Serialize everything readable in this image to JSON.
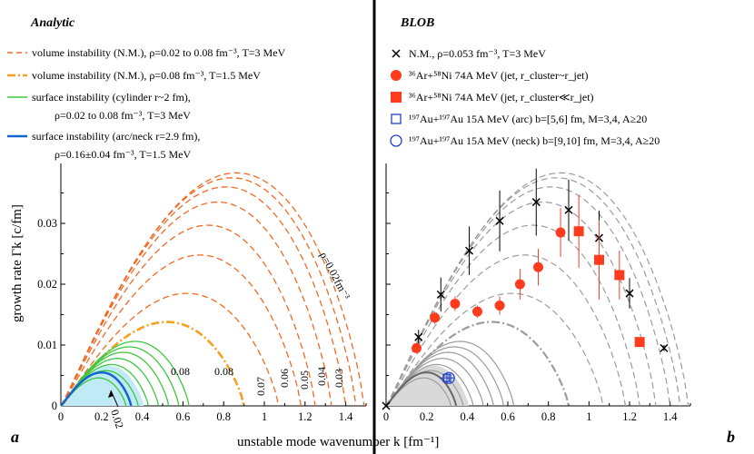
{
  "panels": {
    "left": {
      "title": "Analytic",
      "letter": "a",
      "legend": [
        {
          "style": "dash-orange",
          "text": "volume instability (N.M.), ρ=0.02 to 0.08 fm⁻³, T=3 MeV"
        },
        {
          "style": "dashdot-orange",
          "text": "volume instability (N.M.), ρ=0.08 fm⁻³, T=1.5 MeV"
        },
        {
          "style": "solid-green",
          "text": "surface instability (cylinder r~2 fm),",
          "text2": "ρ=0.02 to 0.08 fm⁻³, T=3 MeV"
        },
        {
          "style": "solid-blue",
          "text": "surface instability (arc/neck r=2.9 fm),",
          "text2": "ρ=0.16±0.04 fm⁻³, T=1.5 MeV"
        }
      ],
      "curve_labels": [
        "0.08",
        "0.08",
        "0.07",
        "0.06",
        "0.05",
        "0.04",
        "0.03",
        "ρ=0.02fm⁻³",
        "0.02"
      ]
    },
    "right": {
      "title": "BLOB",
      "letter": "b",
      "legend": [
        {
          "marker": "cross",
          "text": "N.M., ρ=0.053 fm⁻³, T=3 MeV"
        },
        {
          "marker": "circle-red",
          "text": "³⁶Ar+⁵⁸Ni 74A MeV (jet, r_cluster~r_jet)"
        },
        {
          "marker": "square-red",
          "text": "³⁶Ar+⁵⁸Ni 74A MeV (jet, r_cluster≪r_jet)"
        },
        {
          "marker": "square-blue",
          "text": "¹⁹⁷Au+¹⁹⁷Au 15A MeV (arc) b=[5,6] fm, M=3,4, A≥20"
        },
        {
          "marker": "circle-blue",
          "text": "¹⁹⁷Au+¹⁹⁷Au 15A MeV (neck) b=[9,10] fm, M=3,4, A≥20"
        }
      ]
    },
    "y_axis_title": "growth rate Γk [c/fm]",
    "x_axis_title": "unstable mode wavenumber k [fm⁻¹]"
  },
  "chart_data": [
    {
      "type": "line",
      "panel": "a",
      "title": "Analytic",
      "xlabel": "unstable mode wavenumber k [fm⁻¹]",
      "ylabel": "growth rate Γk [c/fm]",
      "xlim": [
        0,
        1.5
      ],
      "ylim": [
        0,
        0.04
      ],
      "x_ticks": [
        "0",
        "0.2",
        "0.4",
        "0.6",
        "0.8",
        "1",
        "1.2",
        "1.4"
      ],
      "y_ticks": [
        "0",
        "0.01",
        "0.02",
        "0.03"
      ],
      "series": [
        {
          "name": "volume N.M. ρ=0.08 T=3",
          "style": "dash-orange",
          "kmax": 1.49,
          "peak": 0.0383
        },
        {
          "name": "volume N.M. ρ=0.07 T=3",
          "style": "dash-orange",
          "kmax": 1.45,
          "peak": 0.0375
        },
        {
          "name": "volume N.M. ρ=0.06 T=3",
          "style": "dash-orange",
          "kmax": 1.4,
          "peak": 0.036
        },
        {
          "name": "volume N.M. ρ=0.05 T=3",
          "style": "dash-orange",
          "kmax": 1.33,
          "peak": 0.0335
        },
        {
          "name": "volume N.M. ρ=0.04 T=3",
          "style": "dash-orange",
          "kmax": 1.25,
          "peak": 0.0297
        },
        {
          "name": "volume N.M. ρ=0.03 T=3",
          "style": "dash-orange",
          "kmax": 1.18,
          "peak": 0.0248
        },
        {
          "name": "volume N.M. ρ=0.02 T=3",
          "style": "dash-orange",
          "kmax": 1.07,
          "peak": 0.0185
        },
        {
          "name": "volume N.M. ρ=0.08 T=1.5",
          "style": "dashdot-orange",
          "kmax": 0.9,
          "peak": 0.0138
        },
        {
          "name": "surface cylinder ρ=0.08",
          "style": "solid-green",
          "kmax": 0.63,
          "peak": 0.0106
        },
        {
          "name": "surface cylinder ρ=0.07",
          "style": "solid-green",
          "kmax": 0.58,
          "peak": 0.0097
        },
        {
          "name": "surface cylinder ρ=0.06",
          "style": "solid-green",
          "kmax": 0.53,
          "peak": 0.0088
        },
        {
          "name": "surface cylinder ρ=0.05",
          "style": "solid-green",
          "kmax": 0.48,
          "peak": 0.0078
        },
        {
          "name": "surface cylinder ρ=0.04",
          "style": "solid-green",
          "kmax": 0.43,
          "peak": 0.0068
        },
        {
          "name": "surface cylinder ρ=0.03",
          "style": "solid-green",
          "kmax": 0.38,
          "peak": 0.0058
        },
        {
          "name": "surface cylinder ρ=0.02",
          "style": "solid-green",
          "kmax": 0.32,
          "peak": 0.0046
        },
        {
          "name": "surface arc/neck ρ=0.16",
          "style": "solid-blue",
          "kmax": 0.345,
          "peak": 0.0055
        }
      ]
    },
    {
      "type": "scatter",
      "panel": "b",
      "title": "BLOB",
      "xlim": [
        0,
        1.5
      ],
      "ylim": [
        0,
        0.04
      ],
      "x_ticks": [
        "0",
        "0.2",
        "0.4",
        "0.6",
        "0.8",
        "1",
        "1.2",
        "1.4"
      ],
      "series": [
        {
          "name": "N.M., ρ=0.053 fm⁻³, T=3 MeV",
          "marker": "cross",
          "x": [
            0.0,
            0.16,
            0.27,
            0.41,
            0.56,
            0.74,
            0.9,
            1.05,
            1.2,
            1.37
          ],
          "y": [
            0.0,
            0.0113,
            0.0183,
            0.0255,
            0.0304,
            0.0335,
            0.0322,
            0.0276,
            0.0185,
            0.0095
          ],
          "err": [
            0.0,
            0.0012,
            0.0028,
            0.004,
            0.005,
            0.0055,
            0.005,
            0.0045,
            0.0025,
            0.0005
          ]
        },
        {
          "name": "³⁶Ar+⁵⁸Ni 74A MeV (jet, r_cluster~r_jet)",
          "marker": "circle-red",
          "x": [
            0.15,
            0.24,
            0.34,
            0.45,
            0.56,
            0.66,
            0.75,
            0.86
          ],
          "y": [
            0.0095,
            0.0145,
            0.0168,
            0.0155,
            0.0165,
            0.02,
            0.0228,
            0.0285
          ],
          "err": [
            0.0008,
            0.001,
            0.0012,
            0.001,
            0.0015,
            0.0025,
            0.003,
            0.004
          ]
        },
        {
          "name": "³⁶Ar+⁵⁸Ni 74A MeV (jet, r_cluster≪r_jet)",
          "marker": "square-red",
          "x": [
            0.95,
            1.05,
            1.15,
            1.25
          ],
          "y": [
            0.0287,
            0.024,
            0.0215,
            0.0105
          ],
          "err": [
            0.006,
            0.0065,
            0.004,
            0.0003
          ]
        },
        {
          "name": "¹⁹⁷Au+¹⁹⁷Au 15A MeV (arc) b=[5,6] fm",
          "marker": "square-blue",
          "x": [
            0.3
          ],
          "y": [
            0.0046
          ],
          "err": [
            0.0008
          ]
        },
        {
          "name": "¹⁹⁷Au+¹⁹⁷Au 15A MeV (neck) b=[9,10] fm",
          "marker": "circle-blue",
          "x": [
            0.31
          ],
          "y": [
            0.0046
          ],
          "err": [
            0.0006
          ]
        }
      ]
    }
  ],
  "colors": {
    "orange": "#f06a25",
    "orange_light": "#f5a020",
    "green": "#3ec83e",
    "blue": "#1565d0",
    "cyan_band": "#bfeaf6",
    "red_marker": "#ff3b1e",
    "grey": "#9c9c9c",
    "grey_band": "#d9d9d9",
    "blue_marker": "#2040d0"
  }
}
